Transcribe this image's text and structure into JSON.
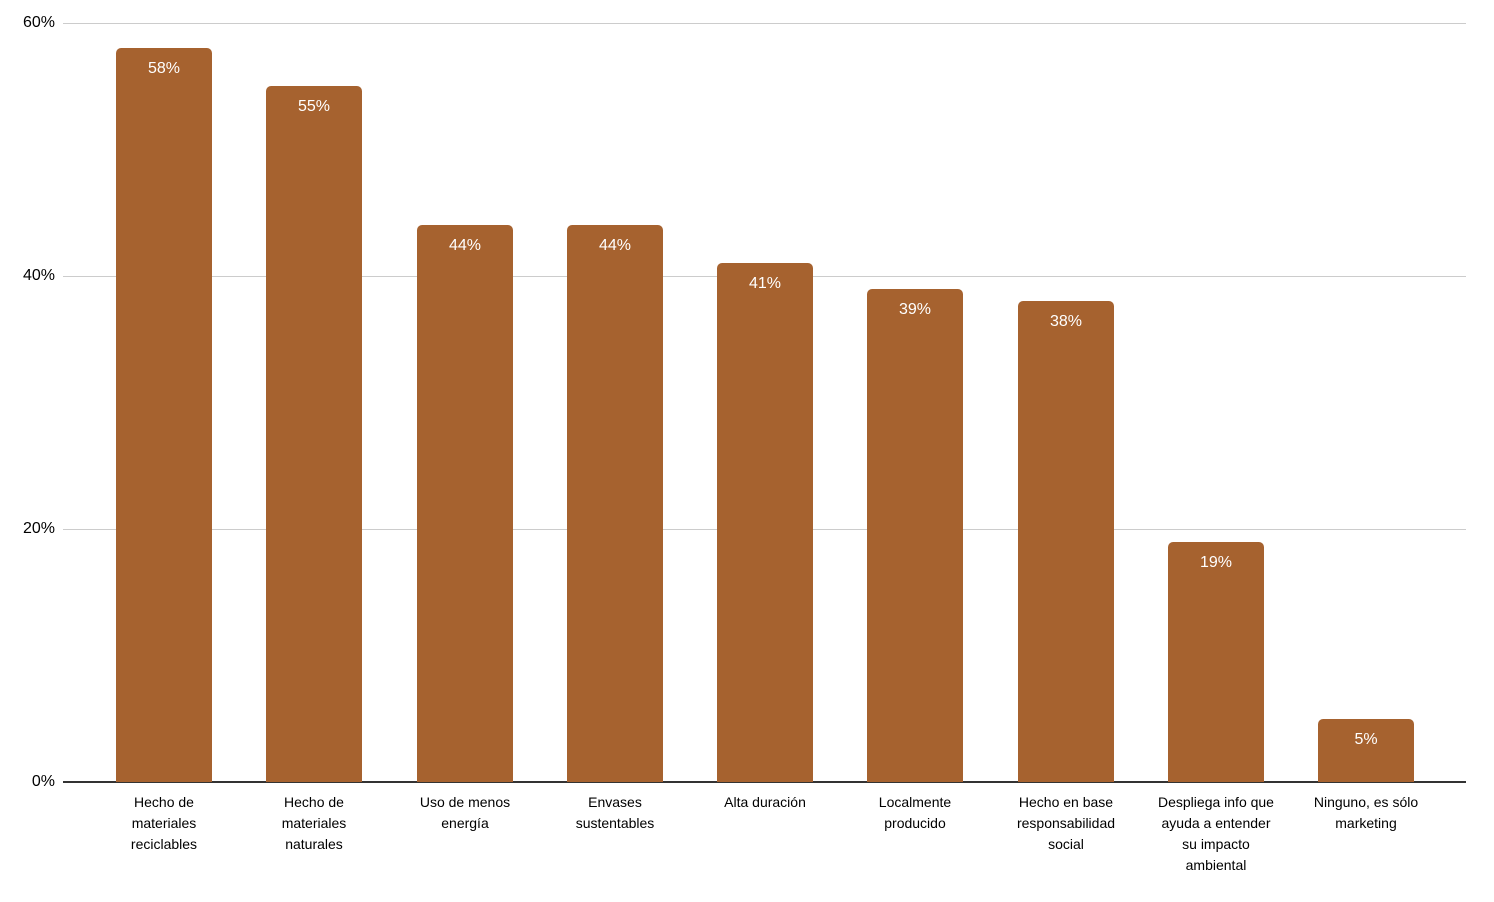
{
  "chart_data": {
    "type": "bar",
    "title": "",
    "xlabel": "",
    "ylabel": "",
    "categories": [
      "Hecho de materiales reciclables",
      "Hecho de materiales naturales",
      "Uso de menos energía",
      "Envases sustentables",
      "Alta duración",
      "Localmente producido",
      "Hecho en base responsabilidad social",
      "Despliega info que ayuda a entender su impacto ambiental",
      "Ninguno, es sólo marketing"
    ],
    "values": [
      58,
      55,
      44,
      44,
      41,
      39,
      38,
      19,
      5
    ],
    "value_labels": [
      "58%",
      "55%",
      "44%",
      "44%",
      "41%",
      "39%",
      "38%",
      "19%",
      "5%"
    ],
    "ylim": [
      0,
      60
    ],
    "yticks": [
      0,
      20,
      40,
      60
    ],
    "ytick_labels": [
      "0%",
      "20%",
      "40%",
      "60%"
    ],
    "grid": true,
    "legend": false,
    "colors": {
      "bar": "#a6622f",
      "value_label": "#ffffff",
      "gridline": "#cccccc",
      "axis_line": "#333333",
      "tick_text": "#000000"
    }
  }
}
